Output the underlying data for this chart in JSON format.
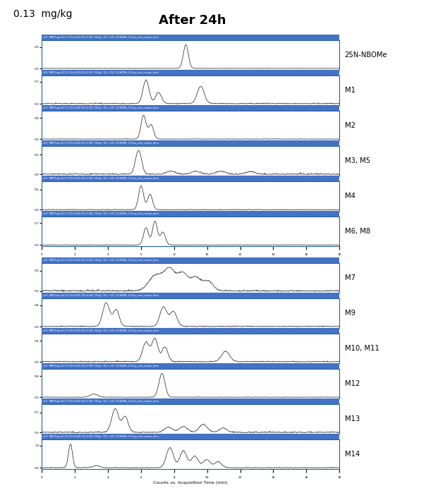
{
  "title": "After 24h",
  "dose_label": "0.13  mg/kg",
  "labels": [
    "25N-NBOMe",
    "M1",
    "M2",
    "M3, M5",
    "M4",
    "M6, M8",
    "M7",
    "M9",
    "M10, M11",
    "M12",
    "M13",
    "M14"
  ],
  "header_color": "#4472C4",
  "panel_bg": "#FFFFFF",
  "line_color": "#000000",
  "border_color": "#2060A0",
  "fig_bg": "#FFFFFF",
  "x_label": "Counts vs. Acquisition Time (min)",
  "header_text": "x10  MRM Frag=45.0 V CID=0.000 CID=0.000 305g/s 301 = 100 25-NBOMe_0.13mg_urine_sample_demo"
}
